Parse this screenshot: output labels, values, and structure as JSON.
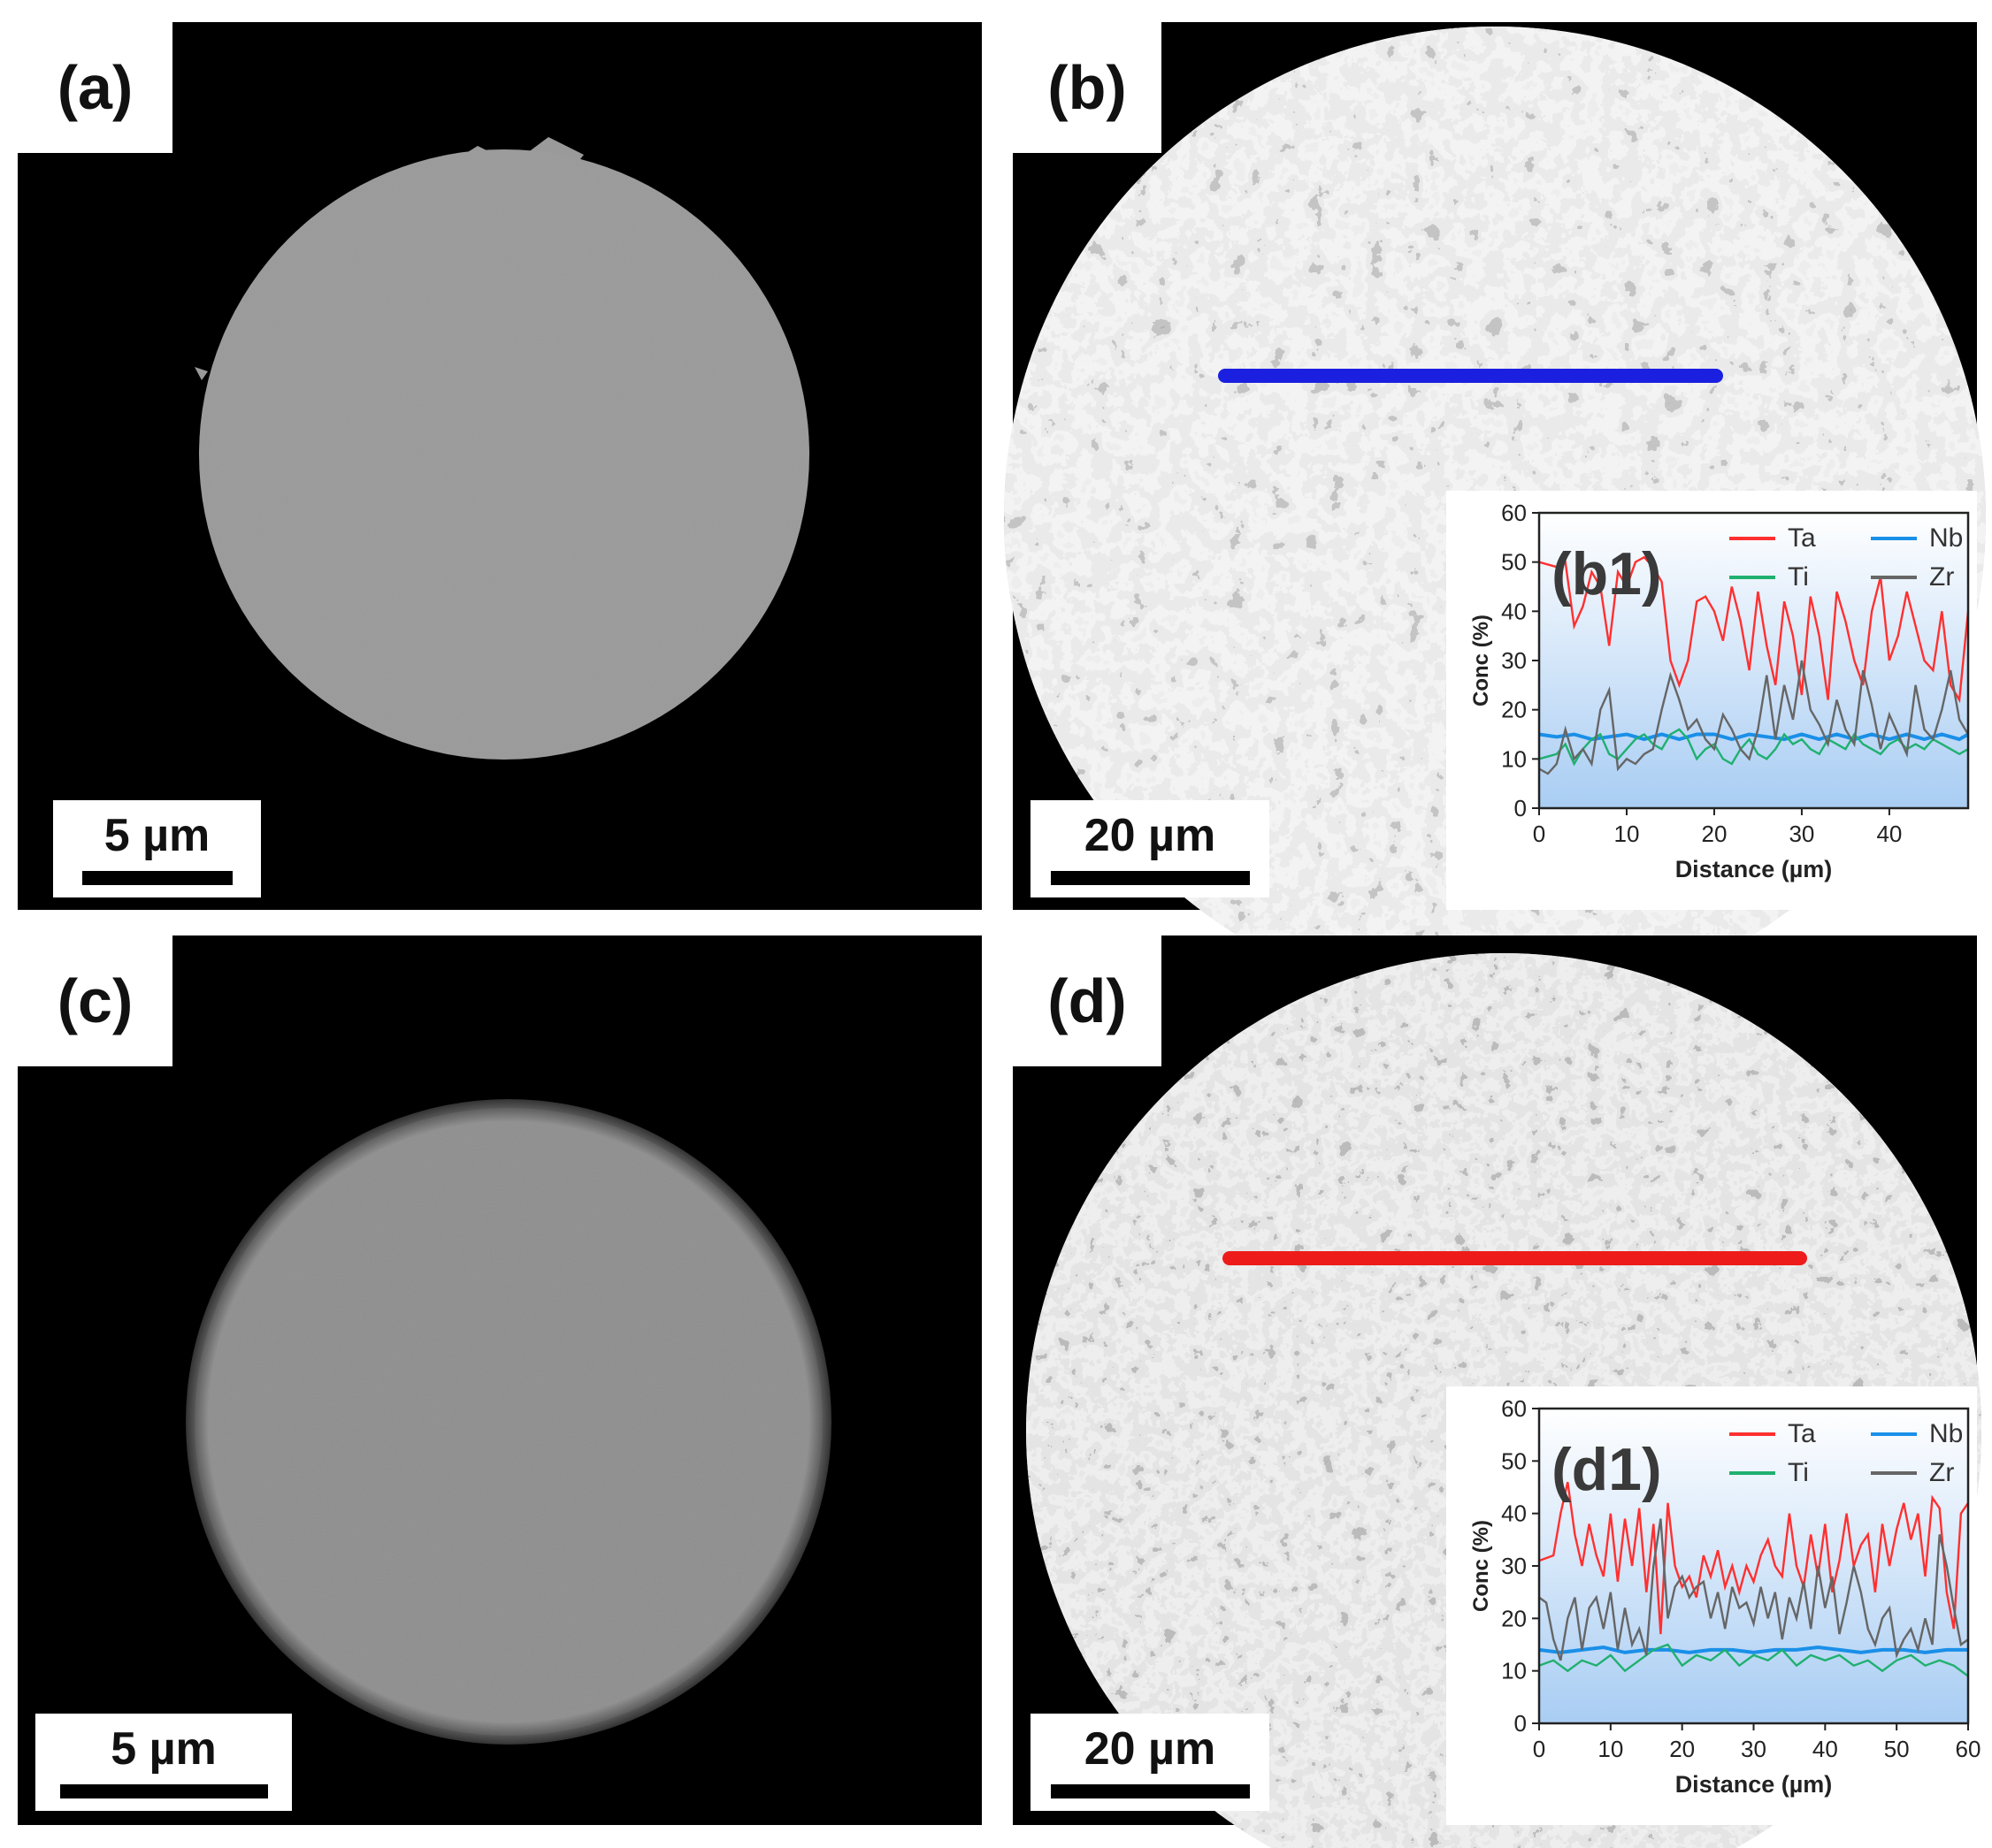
{
  "figure": {
    "panels": [
      {
        "id": "a",
        "label": "(a)",
        "scale_bar": "5 µm"
      },
      {
        "id": "b",
        "label": "(b)",
        "scale_bar": "20 µm",
        "line_color": "#1a1fe0"
      },
      {
        "id": "c",
        "label": "(c)",
        "scale_bar": "5 µm"
      },
      {
        "id": "d",
        "label": "(d)",
        "scale_bar": "20 µm",
        "line_color": "#ee1b1b"
      }
    ]
  },
  "chart_data": [
    {
      "type": "line",
      "panel_label": "(b1)",
      "xlabel": "Distance (µm)",
      "ylabel": "Conc (%)",
      "xlim": [
        0,
        49
      ],
      "ylim": [
        0,
        60
      ],
      "x_ticks": [
        "0",
        "10",
        "20",
        "30",
        "40"
      ],
      "y_ticks": [
        "0",
        "10",
        "20",
        "30",
        "40",
        "50",
        "60"
      ],
      "legend": [
        "Ta",
        "Nb",
        "Ti",
        "Zr"
      ],
      "series": [
        {
          "name": "Ta",
          "color": "#ff3030",
          "x": [
            0,
            2,
            3,
            4,
            5,
            6,
            7,
            8,
            9,
            10,
            11,
            12,
            13,
            14,
            15,
            16,
            17,
            18,
            19,
            20,
            21,
            22,
            23,
            24,
            25,
            26,
            27,
            28,
            29,
            30,
            31,
            32,
            33,
            34,
            35,
            36,
            37,
            38,
            39,
            40,
            41,
            42,
            43,
            44,
            45,
            46,
            47,
            48,
            49
          ],
          "y": [
            50,
            49,
            50,
            37,
            41,
            48,
            45,
            33,
            48,
            45,
            50,
            51,
            49,
            46,
            30,
            25,
            30,
            42,
            43,
            40,
            34,
            45,
            38,
            28,
            44,
            33,
            25,
            42,
            35,
            23,
            43,
            35,
            22,
            44,
            38,
            30,
            25,
            40,
            47,
            30,
            35,
            44,
            37,
            30,
            28,
            40,
            25,
            22,
            40
          ]
        },
        {
          "name": "Nb",
          "color": "#1a8fe8",
          "x": [
            0,
            2,
            4,
            6,
            8,
            10,
            12,
            14,
            16,
            18,
            20,
            22,
            24,
            26,
            28,
            30,
            32,
            34,
            36,
            38,
            40,
            42,
            44,
            46,
            48,
            49
          ],
          "y": [
            15,
            14.5,
            15,
            14,
            14.5,
            15,
            14,
            15,
            14,
            15,
            15,
            14,
            15,
            14.5,
            14,
            15,
            14,
            15,
            14,
            15,
            14,
            15,
            14,
            15,
            14,
            15
          ]
        },
        {
          "name": "Ti",
          "color": "#20b070",
          "x": [
            0,
            2,
            3,
            4,
            5,
            6,
            7,
            8,
            9,
            10,
            11,
            12,
            13,
            14,
            15,
            16,
            17,
            18,
            19,
            20,
            21,
            22,
            23,
            24,
            25,
            26,
            27,
            28,
            29,
            30,
            31,
            32,
            33,
            34,
            35,
            36,
            37,
            38,
            39,
            40,
            41,
            42,
            43,
            44,
            45,
            46,
            47,
            48,
            49
          ],
          "y": [
            10,
            11,
            13,
            9,
            12,
            14,
            15,
            11,
            10,
            12,
            14,
            15,
            13,
            12,
            15,
            16,
            14,
            10,
            12,
            13,
            10,
            9,
            12,
            14,
            11,
            10,
            12,
            15,
            13,
            14,
            12,
            11,
            14,
            13,
            12,
            15,
            13,
            12,
            11,
            13,
            14,
            12,
            13,
            12,
            14,
            13,
            12,
            11,
            12
          ]
        },
        {
          "name": "Zr",
          "color": "#666666",
          "x": [
            0,
            1,
            2,
            3,
            4,
            5,
            6,
            7,
            8,
            9,
            10,
            11,
            12,
            13,
            14,
            15,
            16,
            17,
            18,
            19,
            20,
            21,
            22,
            23,
            24,
            25,
            26,
            27,
            28,
            29,
            30,
            31,
            32,
            33,
            34,
            35,
            36,
            37,
            38,
            39,
            40,
            41,
            42,
            43,
            44,
            45,
            46,
            47,
            48,
            49
          ],
          "y": [
            8,
            7,
            9,
            16,
            10,
            12,
            9,
            20,
            24,
            8,
            10,
            9,
            11,
            12,
            20,
            27,
            22,
            16,
            18,
            14,
            12,
            19,
            16,
            12,
            10,
            16,
            27,
            14,
            25,
            18,
            30,
            20,
            17,
            13,
            22,
            16,
            13,
            28,
            21,
            12,
            19,
            15,
            11,
            25,
            16,
            14,
            20,
            28,
            18,
            15
          ]
        }
      ]
    },
    {
      "type": "line",
      "panel_label": "(d1)",
      "xlabel": "Distance (µm)",
      "ylabel": "Conc (%)",
      "xlim": [
        0,
        60
      ],
      "ylim": [
        0,
        60
      ],
      "x_ticks": [
        "0",
        "10",
        "20",
        "30",
        "40",
        "50",
        "60"
      ],
      "y_ticks": [
        "0",
        "10",
        "20",
        "30",
        "40",
        "50",
        "60"
      ],
      "legend": [
        "Ta",
        "Nb",
        "Ti",
        "Zr"
      ],
      "series": [
        {
          "name": "Ta",
          "color": "#ff3030",
          "x": [
            0,
            2,
            3,
            4,
            5,
            6,
            7,
            8,
            9,
            10,
            11,
            12,
            13,
            14,
            15,
            16,
            17,
            18,
            19,
            20,
            21,
            22,
            23,
            24,
            25,
            26,
            27,
            28,
            29,
            30,
            31,
            32,
            33,
            34,
            35,
            36,
            37,
            38,
            39,
            40,
            41,
            42,
            43,
            44,
            45,
            46,
            47,
            48,
            49,
            50,
            51,
            52,
            53,
            54,
            55,
            56,
            57,
            58,
            59,
            60
          ],
          "y": [
            31,
            32,
            40,
            46,
            36,
            30,
            38,
            32,
            28,
            40,
            27,
            39,
            30,
            41,
            25,
            38,
            17,
            42,
            30,
            26,
            28,
            24,
            32,
            28,
            33,
            26,
            30,
            25,
            30,
            27,
            32,
            35,
            30,
            28,
            40,
            30,
            26,
            36,
            28,
            38,
            25,
            31,
            40,
            30,
            34,
            36,
            25,
            38,
            30,
            37,
            42,
            35,
            40,
            28,
            43,
            41,
            25,
            18,
            40,
            42
          ]
        },
        {
          "name": "Nb",
          "color": "#1a8fe8",
          "x": [
            0,
            3,
            6,
            9,
            12,
            15,
            18,
            21,
            24,
            27,
            30,
            33,
            36,
            39,
            42,
            45,
            48,
            51,
            54,
            57,
            60
          ],
          "y": [
            14,
            13.5,
            14,
            14.5,
            13.5,
            14,
            14,
            13.5,
            14,
            14,
            13.5,
            14,
            14,
            14.5,
            14,
            13.5,
            14,
            14,
            13.5,
            14,
            14
          ]
        },
        {
          "name": "Ti",
          "color": "#20b070",
          "x": [
            0,
            2,
            4,
            6,
            8,
            10,
            12,
            14,
            16,
            18,
            20,
            22,
            24,
            26,
            28,
            30,
            32,
            34,
            36,
            38,
            40,
            42,
            44,
            46,
            48,
            50,
            52,
            54,
            56,
            58,
            60
          ],
          "y": [
            11,
            12,
            10,
            12,
            11,
            13,
            10,
            12,
            14,
            15,
            11,
            13,
            12,
            14,
            11,
            13,
            12,
            14,
            11,
            13,
            12,
            13,
            11,
            12,
            10,
            12,
            13,
            11,
            12,
            11,
            9
          ]
        },
        {
          "name": "Zr",
          "color": "#666666",
          "x": [
            0,
            1,
            2,
            3,
            4,
            5,
            6,
            7,
            8,
            9,
            10,
            11,
            12,
            13,
            14,
            15,
            16,
            17,
            18,
            19,
            20,
            21,
            22,
            23,
            24,
            25,
            26,
            27,
            28,
            29,
            30,
            31,
            32,
            33,
            34,
            35,
            36,
            37,
            38,
            39,
            40,
            41,
            42,
            43,
            44,
            45,
            46,
            47,
            48,
            49,
            50,
            51,
            52,
            53,
            54,
            55,
            56,
            57,
            58,
            59,
            60
          ],
          "y": [
            24,
            23,
            16,
            12,
            20,
            24,
            14,
            22,
            24,
            18,
            25,
            14,
            22,
            15,
            18,
            13,
            30,
            39,
            20,
            26,
            28,
            24,
            26,
            27,
            20,
            25,
            18,
            26,
            22,
            23,
            19,
            26,
            20,
            25,
            16,
            24,
            20,
            27,
            18,
            30,
            22,
            28,
            17,
            23,
            30,
            25,
            18,
            15,
            20,
            22,
            13,
            16,
            18,
            14,
            20,
            15,
            36,
            30,
            22,
            15,
            16
          ]
        }
      ]
    }
  ]
}
